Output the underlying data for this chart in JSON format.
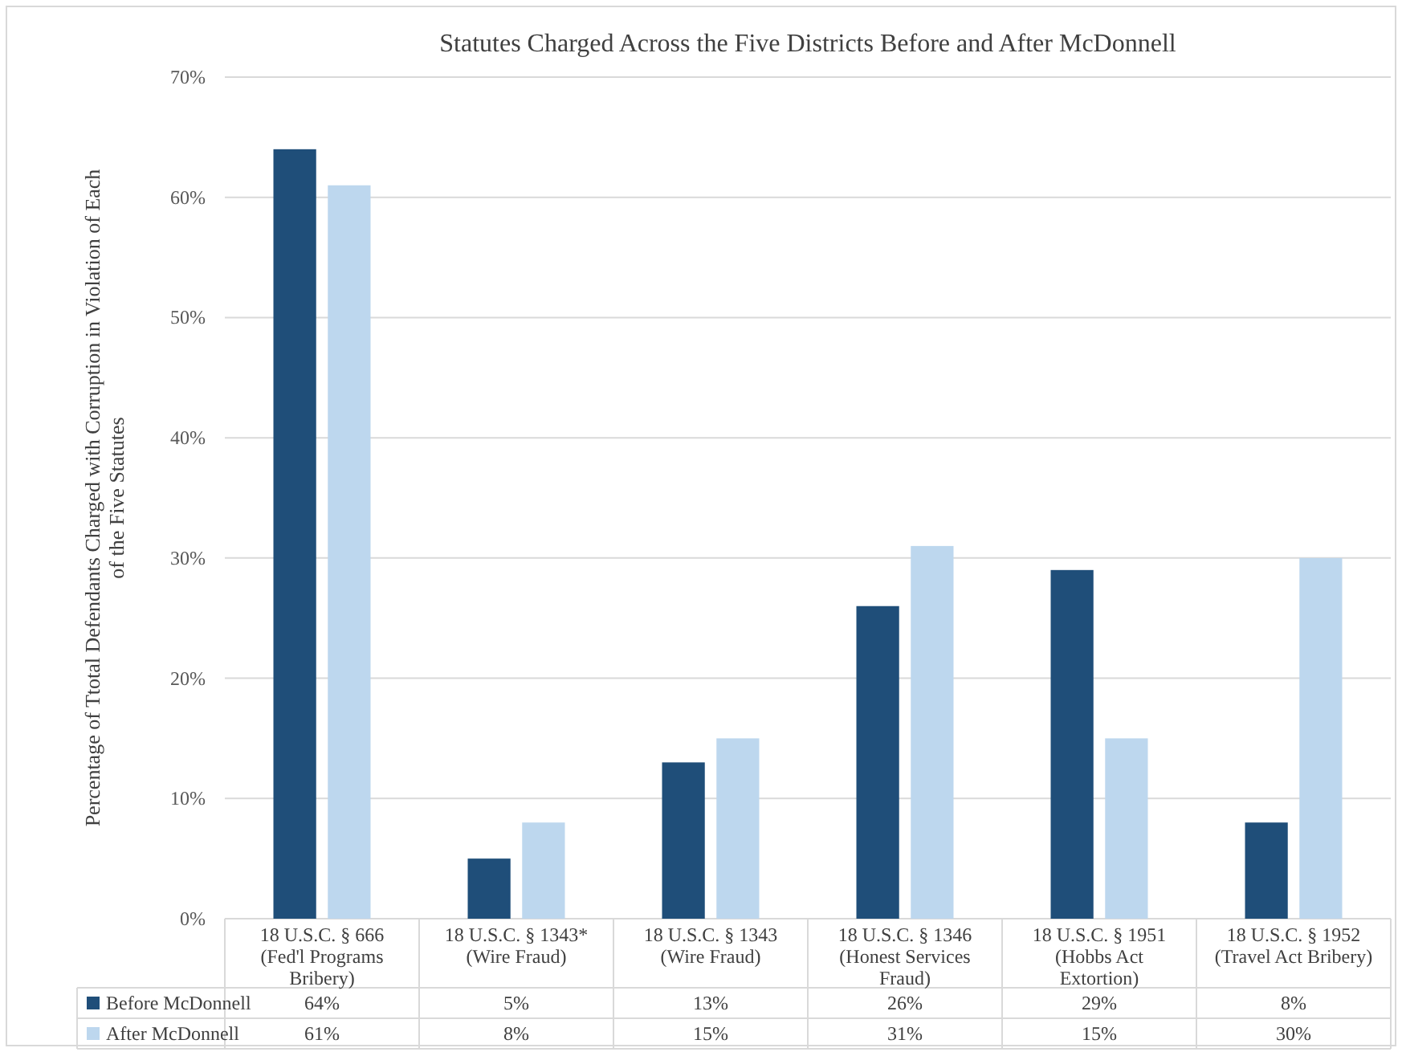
{
  "chart_data": {
    "type": "bar",
    "title": "Statutes Charged Across the Five Districts Before and After McDonnell",
    "ylabel": "Percentage of Ttotal Defendants Charged with Corruption in Violation of Each\nof the Five Statutes",
    "categories": [
      "18 U.S.C. § 666\n(Fed'l Programs\nBribery)",
      "18 U.S.C. § 1343*\n(Wire Fraud)",
      "18 U.S.C. § 1343\n(Wire Fraud)",
      "18 U.S.C. § 1346\n(Honest Services\nFraud)",
      "18 U.S.C. § 1951\n(Hobbs Act\nExtortion)",
      "18 U.S.C. § 1952\n(Travel Act Bribery)"
    ],
    "series": [
      {
        "name": "Before McDonnell",
        "color": "#1f4e79",
        "values": [
          64,
          5,
          13,
          26,
          29,
          8
        ],
        "value_labels": [
          "64%",
          "5%",
          "13%",
          "26%",
          "29%",
          "8%"
        ]
      },
      {
        "name": "After McDonnell",
        "color": "#bdd7ee",
        "values": [
          61,
          8,
          15,
          31,
          15,
          30
        ],
        "value_labels": [
          "61%",
          "8%",
          "15%",
          "31%",
          "15%",
          "30%"
        ]
      }
    ],
    "ylim": [
      0,
      70
    ],
    "yticks": [
      {
        "value": 0,
        "label": "0%"
      },
      {
        "value": 10,
        "label": "10%"
      },
      {
        "value": 20,
        "label": "20%"
      },
      {
        "value": 30,
        "label": "30%"
      },
      {
        "value": 40,
        "label": "40%"
      },
      {
        "value": 50,
        "label": "50%"
      },
      {
        "value": 60,
        "label": "60%"
      },
      {
        "value": 70,
        "label": "70%"
      }
    ],
    "grid": "y",
    "legend": "bottom"
  }
}
